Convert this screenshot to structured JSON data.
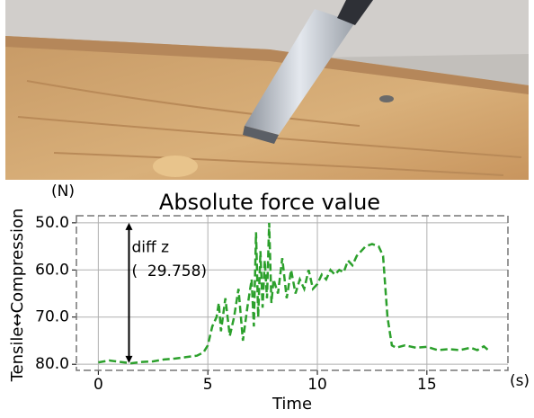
{
  "chart_data": {
    "type": "line",
    "title": "Absolute force value",
    "x_label": "Time",
    "y_label": "Tensile↔Compression",
    "x_unit": "(s)",
    "y_unit": "(N)",
    "x": [
      0,
      0.5,
      1,
      1.5,
      2,
      2.5,
      3,
      3.5,
      4,
      4.5,
      4.8,
      5,
      5.2,
      5.4,
      5.5,
      5.6,
      5.8,
      6,
      6.2,
      6.4,
      6.6,
      6.8,
      7,
      7.1,
      7.2,
      7.3,
      7.4,
      7.5,
      7.6,
      7.7,
      7.8,
      7.9,
      8,
      8.2,
      8.4,
      8.6,
      8.8,
      9,
      9.2,
      9.4,
      9.6,
      9.8,
      10,
      10.2,
      10.4,
      10.6,
      10.8,
      11,
      11.2,
      11.4,
      11.6,
      11.8,
      12,
      12.2,
      12.5,
      12.8,
      13,
      13.2,
      13.4,
      13.6,
      14,
      14.5,
      15,
      15.5,
      16,
      16.5,
      17,
      17.3,
      17.6,
      17.8
    ],
    "series": [
      {
        "name": "Absolute force value",
        "color": "#2ca02c",
        "values": [
          79.6,
          79.2,
          79.5,
          79.8,
          79.5,
          79.4,
          79.0,
          78.8,
          78.5,
          78.2,
          77.5,
          76,
          72,
          70,
          67,
          73,
          66,
          74,
          70,
          64,
          75,
          68,
          62,
          72,
          52,
          70,
          56,
          68,
          58,
          66,
          50,
          67,
          62,
          65,
          57.5,
          66,
          60,
          65,
          62,
          64,
          60,
          64,
          63,
          61,
          62,
          60,
          61,
          60,
          60.5,
          58,
          59,
          57,
          56,
          55,
          54.5,
          55,
          57,
          70,
          76,
          76.5,
          76,
          76.5,
          76.3,
          77,
          76.8,
          77,
          76.5,
          77,
          76.2,
          77
        ]
      }
    ],
    "annotation": {
      "text": "diff z",
      "value_text": "(  29.758)",
      "x": 1.4,
      "y_top": 50,
      "y_bottom": 79.758
    },
    "xlim": [
      -1,
      18.7
    ],
    "ylim": [
      81.3,
      48.5
    ],
    "xticks": [
      0,
      5,
      10,
      15
    ],
    "yticks": [
      {
        "value": 50,
        "label": "50.0"
      },
      {
        "value": 60,
        "label": "60.0"
      },
      {
        "value": 70,
        "label": "70.0"
      },
      {
        "value": 80,
        "label": "80.0"
      }
    ],
    "grid": true
  }
}
